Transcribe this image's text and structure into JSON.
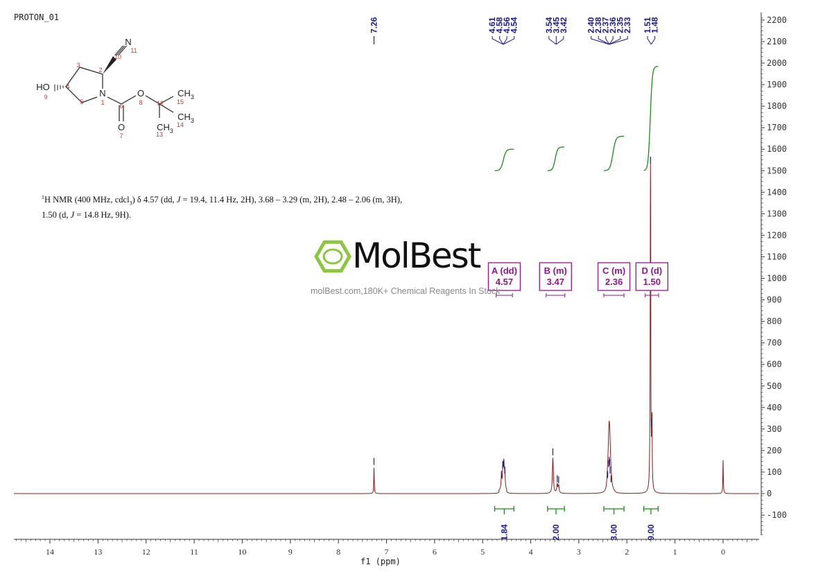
{
  "sample_title": "PROTON_01",
  "nmr_summary": {
    "sup": "1",
    "line1_a": "H NMR (400 MHz, cdcl",
    "line1_sub": "3",
    "line1_b": ") δ 4.57 (dd, ",
    "j1": "J",
    "line1_c": " = 19.4, 11.4 Hz, 2H), 3.68 – 3.29 (m, 2H), 2.48 – 2.06 (m, 3H),",
    "line2_a": "1.50 (d, ",
    "j2": "J",
    "line2_b": " = 14.8 Hz, 9H)."
  },
  "watermark": {
    "brand": "MolBest",
    "caption": "molBest.com,180K+ Chemical Reagents In Stock"
  },
  "structure": {
    "atoms": [
      {
        "label": "HO",
        "number": "9"
      },
      {
        "label": "",
        "number": "4"
      },
      {
        "label": "",
        "number": "3"
      },
      {
        "label": "",
        "number": "2"
      },
      {
        "label": "",
        "number": "10"
      },
      {
        "label": "N",
        "number": "11"
      },
      {
        "label": "N",
        "number": "1"
      },
      {
        "label": "",
        "number": "5"
      },
      {
        "label": "",
        "number": "6"
      },
      {
        "label": "O",
        "number": "7"
      },
      {
        "label": "O",
        "number": "8"
      },
      {
        "label": "",
        "number": "12"
      },
      {
        "label": "CH3",
        "number": "15"
      },
      {
        "label": "CH3",
        "number": "14"
      },
      {
        "label": "CH3",
        "number": "13"
      }
    ]
  },
  "colors": {
    "spectrum": "#8b1a1a",
    "integral": "#1a8a1a",
    "peak_label": "#1a1a8c",
    "multiplet": "#8a1a8a",
    "axis": "#333333",
    "logo_green": "#8cc63f"
  },
  "chart_data": {
    "type": "line",
    "title": "",
    "xlabel": "f1 (ppm)",
    "ylabel": "",
    "xlim": [
      14.75,
      -0.75
    ],
    "ylim": [
      -200,
      2230
    ],
    "x_ticks": [
      14,
      13,
      12,
      11,
      10,
      9,
      8,
      7,
      6,
      5,
      4,
      3,
      2,
      1,
      0
    ],
    "y_ticks": [
      2200,
      2100,
      2000,
      1900,
      1800,
      1700,
      1600,
      1500,
      1400,
      1300,
      1200,
      1100,
      1000,
      900,
      800,
      700,
      600,
      500,
      400,
      300,
      200,
      100,
      0,
      -100
    ],
    "peaks": [
      {
        "ppm": 7.26,
        "height": 120,
        "width": 0.006
      },
      {
        "ppm": 4.61,
        "height": 60,
        "width": 0.01
      },
      {
        "ppm": 4.58,
        "height": 105,
        "width": 0.01
      },
      {
        "ppm": 4.56,
        "height": 110,
        "width": 0.01
      },
      {
        "ppm": 4.54,
        "height": 80,
        "width": 0.01
      },
      {
        "ppm": 3.54,
        "height": 165,
        "width": 0.012
      },
      {
        "ppm": 3.45,
        "height": 40,
        "width": 0.012
      },
      {
        "ppm": 3.42,
        "height": 35,
        "width": 0.012
      },
      {
        "ppm": 2.4,
        "height": 60,
        "width": 0.015
      },
      {
        "ppm": 2.38,
        "height": 110,
        "width": 0.015
      },
      {
        "ppm": 2.37,
        "height": 125,
        "width": 0.015
      },
      {
        "ppm": 2.36,
        "height": 115,
        "width": 0.015
      },
      {
        "ppm": 2.35,
        "height": 80,
        "width": 0.015
      },
      {
        "ppm": 2.33,
        "height": 40,
        "width": 0.015
      },
      {
        "ppm": 1.51,
        "height": 1520,
        "width": 0.007
      },
      {
        "ppm": 1.48,
        "height": 300,
        "width": 0.007
      },
      {
        "ppm": 0.0,
        "height": 155,
        "width": 0.006
      }
    ],
    "peak_labels": [
      "7.26",
      "4.61",
      "4.58",
      "4.56",
      "4.54",
      "3.54",
      "3.45",
      "3.42",
      "2.40",
      "2.38",
      "2.37",
      "2.36",
      "2.35",
      "2.33",
      "1.51",
      "1.48"
    ],
    "peak_label_groups": [
      {
        "label_positions": [
          7.26
        ],
        "values": [
          "7.26"
        ]
      },
      {
        "label_positions": [
          4.61,
          4.58,
          4.56,
          4.54
        ],
        "values": [
          "4.61",
          "4.58",
          "4.56",
          "4.54"
        ]
      },
      {
        "label_positions": [
          3.54,
          3.45,
          3.42
        ],
        "values": [
          "3.54",
          "3.45",
          "3.42"
        ]
      },
      {
        "label_positions": [
          2.4,
          2.38,
          2.37,
          2.36,
          2.35,
          2.33
        ],
        "values": [
          "2.40",
          "2.38",
          "2.37",
          "2.36",
          "2.35",
          "2.33"
        ]
      },
      {
        "label_positions": [
          1.51,
          1.48
        ],
        "values": [
          "1.51",
          "1.48"
        ]
      }
    ],
    "integrals": [
      {
        "from": 4.75,
        "to": 4.35,
        "value": "1.84",
        "curve_start": 1500,
        "curve_end": 1600
      },
      {
        "from": 3.65,
        "to": 3.3,
        "value": "2.00",
        "curve_start": 1500,
        "curve_end": 1610
      },
      {
        "from": 2.48,
        "to": 2.06,
        "value": "3.00",
        "curve_start": 1500,
        "curve_end": 1660
      },
      {
        "from": 1.65,
        "to": 1.35,
        "value": "9.00",
        "curve_start": 1500,
        "curve_end": 1985
      }
    ],
    "multiplets": [
      {
        "id": "A",
        "type": "dd",
        "ppm": "4.57",
        "from": 4.72,
        "to": 4.38
      },
      {
        "id": "B",
        "type": "m",
        "ppm": "3.47",
        "from": 3.68,
        "to": 3.29
      },
      {
        "id": "C",
        "type": "m",
        "ppm": "2.36",
        "from": 2.48,
        "to": 2.06
      },
      {
        "id": "D",
        "type": "d",
        "ppm": "1.50",
        "from": 1.62,
        "to": 1.34
      }
    ]
  }
}
